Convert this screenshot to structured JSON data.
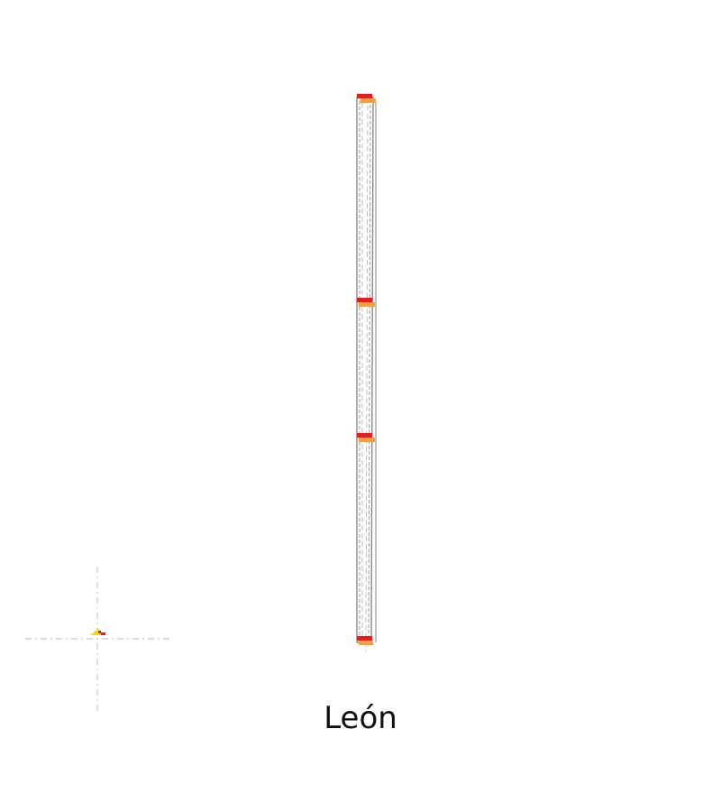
{
  "caption": "León",
  "colors": {
    "background": "#ffffff",
    "outline": "#8a8a8a",
    "guide": "#c8c8c8",
    "marker_red": "#e02020",
    "marker_orange": "#f0a040",
    "marker_yellow": "#f5d800"
  },
  "icons": {
    "origin": "crosshair-icon",
    "origin_marker": "yellow-wedge-icon"
  }
}
